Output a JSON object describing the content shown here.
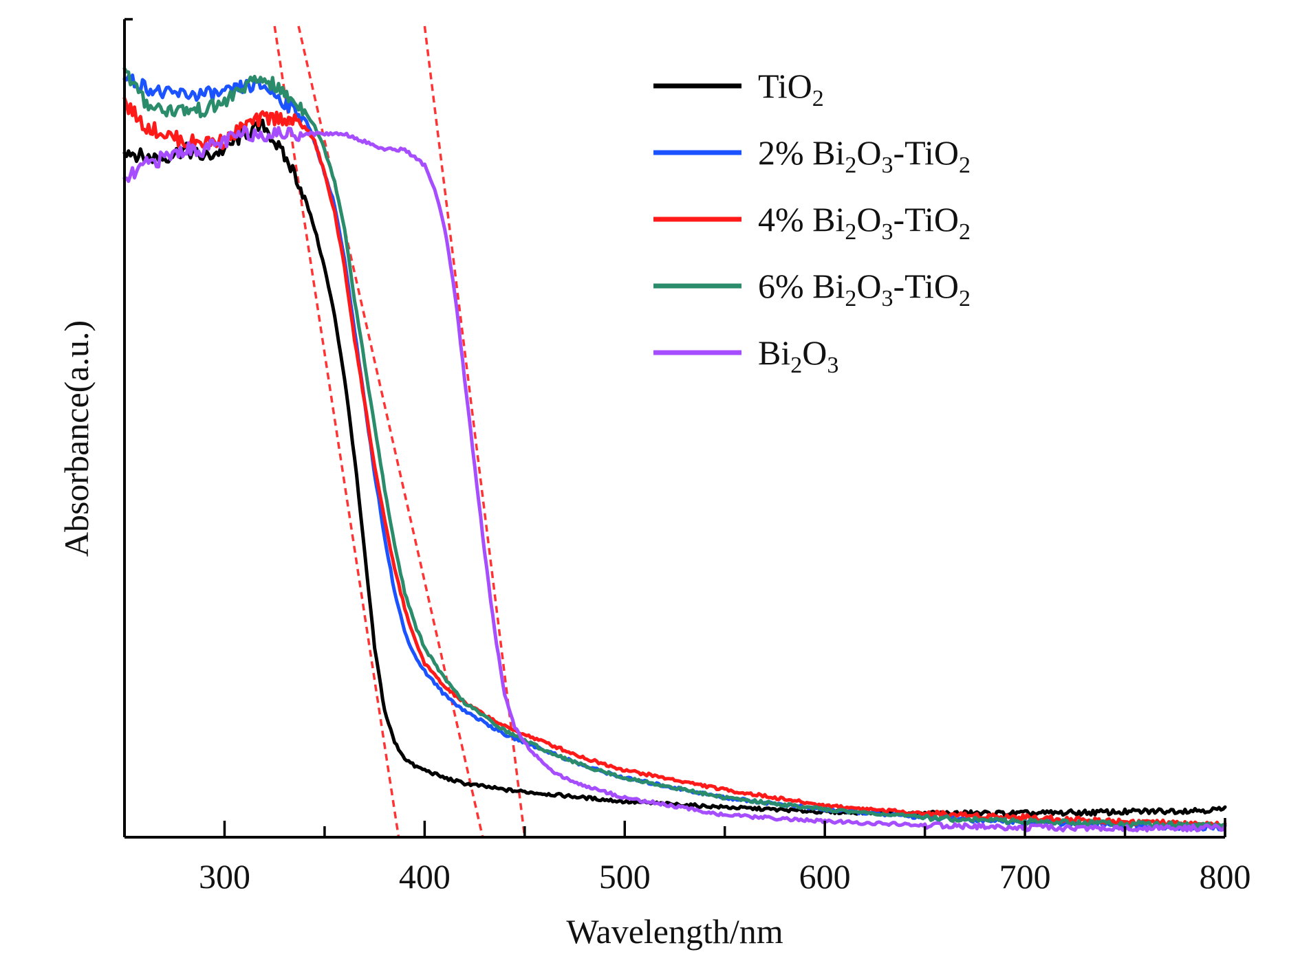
{
  "chart_data": {
    "type": "line",
    "title": "",
    "xlabel": "Wavelength/nm",
    "ylabel": "Absorbance(a.u.)",
    "xlim": [
      250,
      800
    ],
    "ylim": [
      0,
      1.0
    ],
    "x_ticks": [
      300,
      400,
      500,
      600,
      700,
      800
    ],
    "x_minor_ticks": [
      350,
      450,
      550,
      650,
      750
    ],
    "y_ticks_visible": false,
    "legend_position": "top-right",
    "series": [
      {
        "name": "TiO2",
        "label_main": "TiO",
        "label_parts": [
          {
            "t": "TiO",
            "sub": false
          },
          {
            "t": "2",
            "sub": true
          }
        ],
        "color": "#000000",
        "x": [
          250,
          260,
          270,
          280,
          290,
          300,
          310,
          320,
          325,
          330,
          335,
          340,
          345,
          350,
          355,
          360,
          365,
          370,
          375,
          380,
          385,
          390,
          395,
          400,
          410,
          420,
          440,
          460,
          480,
          500,
          550,
          600,
          650,
          700,
          750,
          800
        ],
        "y": [
          0.87,
          0.86,
          0.86,
          0.87,
          0.86,
          0.87,
          0.89,
          0.9,
          0.88,
          0.86,
          0.84,
          0.81,
          0.77,
          0.72,
          0.66,
          0.58,
          0.48,
          0.36,
          0.24,
          0.16,
          0.12,
          0.1,
          0.09,
          0.085,
          0.075,
          0.068,
          0.06,
          0.055,
          0.05,
          0.045,
          0.038,
          0.032,
          0.03,
          0.03,
          0.032,
          0.035
        ]
      },
      {
        "name": "2% Bi2O3-TiO2",
        "label_main": "2% Bi",
        "label_parts": [
          {
            "t": "2% Bi",
            "sub": false
          },
          {
            "t": "2",
            "sub": true
          },
          {
            "t": "O",
            "sub": false
          },
          {
            "t": "3",
            "sub": true
          },
          {
            "t": "-TiO",
            "sub": false
          },
          {
            "t": "2",
            "sub": true
          }
        ],
        "color": "#1a53ff",
        "x": [
          250,
          260,
          270,
          280,
          290,
          300,
          310,
          320,
          330,
          340,
          345,
          350,
          355,
          360,
          365,
          370,
          375,
          380,
          385,
          390,
          395,
          400,
          410,
          420,
          440,
          460,
          480,
          500,
          550,
          600,
          650,
          700,
          750,
          800
        ],
        "y": [
          0.96,
          0.95,
          0.94,
          0.94,
          0.94,
          0.94,
          0.95,
          0.95,
          0.93,
          0.91,
          0.88,
          0.84,
          0.8,
          0.73,
          0.64,
          0.55,
          0.46,
          0.38,
          0.31,
          0.26,
          0.23,
          0.21,
          0.18,
          0.16,
          0.13,
          0.11,
          0.09,
          0.075,
          0.05,
          0.035,
          0.025,
          0.02,
          0.015,
          0.012
        ]
      },
      {
        "name": "4% Bi2O3-TiO2",
        "label_main": "4% Bi",
        "label_parts": [
          {
            "t": "4% Bi",
            "sub": false
          },
          {
            "t": "2",
            "sub": true
          },
          {
            "t": "O",
            "sub": false
          },
          {
            "t": "3",
            "sub": true
          },
          {
            "t": "-TiO",
            "sub": false
          },
          {
            "t": "2",
            "sub": true
          }
        ],
        "color": "#ff1a1a",
        "x": [
          250,
          260,
          270,
          280,
          290,
          300,
          310,
          320,
          330,
          340,
          345,
          350,
          355,
          360,
          365,
          370,
          375,
          380,
          385,
          390,
          395,
          400,
          410,
          420,
          440,
          460,
          480,
          500,
          550,
          600,
          650,
          700,
          750,
          800
        ],
        "y": [
          0.93,
          0.9,
          0.89,
          0.88,
          0.88,
          0.88,
          0.9,
          0.91,
          0.91,
          0.9,
          0.88,
          0.84,
          0.79,
          0.72,
          0.63,
          0.55,
          0.47,
          0.4,
          0.34,
          0.29,
          0.25,
          0.22,
          0.19,
          0.17,
          0.14,
          0.12,
          0.1,
          0.085,
          0.06,
          0.04,
          0.03,
          0.025,
          0.02,
          0.015
        ]
      },
      {
        "name": "6% Bi2O3-TiO2",
        "label_main": "6% Bi",
        "label_parts": [
          {
            "t": "6% Bi",
            "sub": false
          },
          {
            "t": "2",
            "sub": true
          },
          {
            "t": "O",
            "sub": false
          },
          {
            "t": "3",
            "sub": true
          },
          {
            "t": "-TiO",
            "sub": false
          },
          {
            "t": "2",
            "sub": true
          }
        ],
        "color": "#2a8c6b",
        "x": [
          250,
          260,
          270,
          280,
          290,
          300,
          310,
          320,
          330,
          340,
          345,
          350,
          355,
          360,
          365,
          370,
          375,
          380,
          385,
          390,
          395,
          400,
          410,
          420,
          440,
          460,
          480,
          500,
          550,
          600,
          650,
          700,
          750,
          800
        ],
        "y": [
          0.97,
          0.93,
          0.92,
          0.92,
          0.92,
          0.93,
          0.95,
          0.96,
          0.94,
          0.92,
          0.9,
          0.87,
          0.83,
          0.77,
          0.68,
          0.6,
          0.52,
          0.44,
          0.37,
          0.31,
          0.27,
          0.24,
          0.2,
          0.17,
          0.135,
          0.11,
          0.09,
          0.075,
          0.05,
          0.035,
          0.025,
          0.02,
          0.017,
          0.015
        ]
      },
      {
        "name": "Bi2O3",
        "label_main": "Bi",
        "label_parts": [
          {
            "t": "Bi",
            "sub": false
          },
          {
            "t": "2",
            "sub": true
          },
          {
            "t": "O",
            "sub": false
          },
          {
            "t": "3",
            "sub": true
          }
        ],
        "color": "#a64dff",
        "x": [
          250,
          260,
          270,
          280,
          290,
          300,
          310,
          320,
          330,
          340,
          350,
          360,
          370,
          380,
          390,
          395,
          400,
          405,
          410,
          415,
          420,
          425,
          430,
          435,
          440,
          445,
          450,
          460,
          470,
          480,
          500,
          550,
          600,
          650,
          700,
          750,
          800
        ],
        "y": [
          0.83,
          0.85,
          0.86,
          0.87,
          0.87,
          0.88,
          0.89,
          0.89,
          0.89,
          0.89,
          0.89,
          0.89,
          0.88,
          0.87,
          0.87,
          0.86,
          0.85,
          0.82,
          0.77,
          0.69,
          0.58,
          0.47,
          0.36,
          0.26,
          0.18,
          0.14,
          0.12,
          0.09,
          0.075,
          0.065,
          0.05,
          0.028,
          0.02,
          0.015,
          0.012,
          0.011,
          0.012
        ]
      }
    ],
    "fit_lines": [
      {
        "name": "TiO2 tangent",
        "color": "#ff3333",
        "x": [
          325,
          387
        ],
        "y": [
          1.0,
          0.0
        ]
      },
      {
        "name": "Bi2O3-TiO2 tangent",
        "color": "#ff3333",
        "x": [
          337,
          429
        ],
        "y": [
          1.0,
          0.0
        ]
      },
      {
        "name": "Bi2O3 tangent",
        "color": "#ff3333",
        "x": [
          400,
          450
        ],
        "y": [
          1.0,
          0.0
        ]
      }
    ]
  }
}
